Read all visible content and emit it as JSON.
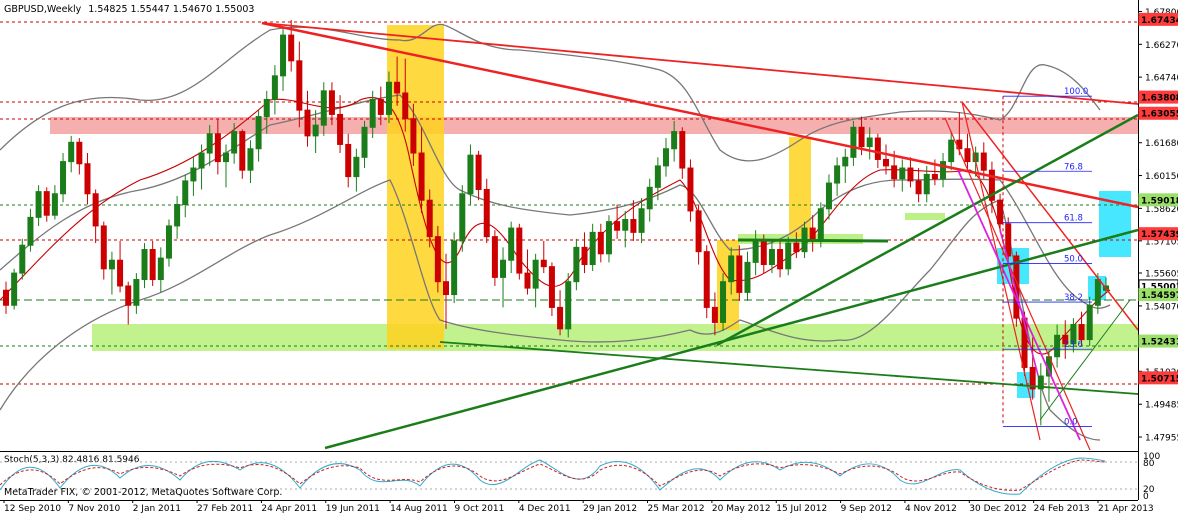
{
  "header": {
    "symbol": "GBPUSD,Weekly",
    "ohlc": "1.54825 1.55447 1.54670 1.55003"
  },
  "footer": {
    "copyright": "MetaTrader FIX, © 2001-2012, MetaQuotes Software Corp."
  },
  "stoch": {
    "label": "Stoch(5,3,3) 82.4816 81.5946",
    "ticks": [
      "100",
      "80",
      "20",
      "0"
    ],
    "ylim": [
      0,
      100
    ]
  },
  "colors": {
    "bull": "#1a7d1a",
    "bear": "#cc0000",
    "accent_red": "#ff0000",
    "band_pink": "#f4a6a6",
    "band_green": "#b6f07a",
    "highlight_orange": "#ffd21f",
    "highlight_cyan": "#33e6ff",
    "bollinger": "#777777",
    "fib": "#2222ff",
    "stoch_main": "#33aacc",
    "stoch_signal": "#cc2222"
  },
  "chart_data": {
    "type": "candlestick",
    "title": "GBPUSD,Weekly",
    "ylim": [
      1.4735,
      1.6815
    ],
    "y_ticks": [
      "1.67800",
      "1.66270",
      "1.64740",
      "1.63190",
      "1.61680",
      "1.60150",
      "1.58620",
      "1.57105",
      "1.55605",
      "1.54070",
      "1.52545",
      "1.51020",
      "1.49485",
      "1.47955"
    ],
    "x_ticks": [
      "12 Sep 2010",
      "7 Nov 2010",
      "2 Jan 2011",
      "27 Feb 2011",
      "24 Apr 2011",
      "19 Jun 2011",
      "14 Aug 2011",
      "9 Oct 2011",
      "4 Dec 2011",
      "29 Jan 2012",
      "25 Mar 2012",
      "20 May 2012",
      "15 Jul 2012",
      "9 Sep 2012",
      "4 Nov 2012",
      "30 Dec 2012",
      "24 Feb 2013",
      "21 Apr 2013"
    ],
    "price_labels": [
      {
        "text": "1.67434",
        "value": 1.67434
      },
      {
        "text": "1.63808",
        "value": 1.63808
      },
      {
        "text": "1.63055",
        "value": 1.63055
      },
      {
        "text": "1.59018",
        "value": 1.59018
      },
      {
        "text": "1.57439",
        "value": 1.57439
      },
      {
        "text": "1.55003",
        "value": 1.55003
      },
      {
        "text": "1.54597",
        "value": 1.54597
      },
      {
        "text": "1.52431",
        "value": 1.52431
      },
      {
        "text": "1.50715",
        "value": 1.50715
      }
    ],
    "fib_levels": [
      {
        "label": "100.0",
        "value": 1.6385
      },
      {
        "label": "76.8",
        "value": 1.6035
      },
      {
        "label": "61.8",
        "value": 1.5795
      },
      {
        "label": "50.0",
        "value": 1.5605
      },
      {
        "label": "38.2",
        "value": 1.5425
      },
      {
        "label": "23.6",
        "value": 1.5205
      },
      {
        "label": "0.0",
        "value": 1.4845
      }
    ],
    "candles": [
      [
        1.548,
        1.552,
        1.537,
        1.541
      ],
      [
        1.541,
        1.558,
        1.539,
        1.556
      ],
      [
        1.556,
        1.572,
        1.553,
        1.569
      ],
      [
        1.569,
        1.586,
        1.566,
        1.582
      ],
      [
        1.582,
        1.597,
        1.578,
        1.594
      ],
      [
        1.594,
        1.596,
        1.58,
        1.583
      ],
      [
        1.583,
        1.597,
        1.581,
        1.593
      ],
      [
        1.593,
        1.612,
        1.589,
        1.608
      ],
      [
        1.608,
        1.62,
        1.603,
        1.617
      ],
      [
        1.617,
        1.619,
        1.602,
        1.607
      ],
      [
        1.607,
        1.612,
        1.588,
        1.593
      ],
      [
        1.593,
        1.595,
        1.57,
        1.578
      ],
      [
        1.578,
        1.58,
        1.553,
        1.558
      ],
      [
        1.558,
        1.566,
        1.546,
        1.562
      ],
      [
        1.562,
        1.571,
        1.547,
        1.55
      ],
      [
        1.55,
        1.552,
        1.532,
        1.541
      ],
      [
        1.541,
        1.556,
        1.537,
        1.553
      ],
      [
        1.553,
        1.57,
        1.549,
        1.567
      ],
      [
        1.567,
        1.571,
        1.55,
        1.553
      ],
      [
        1.553,
        1.568,
        1.547,
        1.563
      ],
      [
        1.563,
        1.581,
        1.559,
        1.578
      ],
      [
        1.578,
        1.592,
        1.572,
        1.588
      ],
      [
        1.588,
        1.602,
        1.582,
        1.599
      ],
      [
        1.599,
        1.61,
        1.592,
        1.605
      ],
      [
        1.605,
        1.616,
        1.595,
        1.612
      ],
      [
        1.612,
        1.625,
        1.606,
        1.621
      ],
      [
        1.621,
        1.628,
        1.602,
        1.608
      ],
      [
        1.608,
        1.616,
        1.596,
        1.612
      ],
      [
        1.612,
        1.626,
        1.607,
        1.622
      ],
      [
        1.622,
        1.623,
        1.6,
        1.604
      ],
      [
        1.604,
        1.618,
        1.598,
        1.614
      ],
      [
        1.614,
        1.632,
        1.608,
        1.629
      ],
      [
        1.629,
        1.641,
        1.621,
        1.637
      ],
      [
        1.637,
        1.653,
        1.63,
        1.648
      ],
      [
        1.648,
        1.671,
        1.641,
        1.667
      ],
      [
        1.667,
        1.674,
        1.65,
        1.655
      ],
      [
        1.655,
        1.664,
        1.624,
        1.632
      ],
      [
        1.632,
        1.641,
        1.615,
        1.62
      ],
      [
        1.62,
        1.632,
        1.612,
        1.625
      ],
      [
        1.625,
        1.645,
        1.62,
        1.641
      ],
      [
        1.641,
        1.645,
        1.625,
        1.63
      ],
      [
        1.63,
        1.639,
        1.612,
        1.616
      ],
      [
        1.616,
        1.621,
        1.596,
        1.601
      ],
      [
        1.601,
        1.614,
        1.594,
        1.61
      ],
      [
        1.61,
        1.627,
        1.605,
        1.624
      ],
      [
        1.624,
        1.641,
        1.619,
        1.637
      ],
      [
        1.637,
        1.643,
        1.625,
        1.63
      ],
      [
        1.63,
        1.65,
        1.626,
        1.645
      ],
      [
        1.645,
        1.657,
        1.634,
        1.64
      ],
      [
        1.64,
        1.656,
        1.622,
        1.628
      ],
      [
        1.628,
        1.635,
        1.606,
        1.612
      ],
      [
        1.612,
        1.624,
        1.584,
        1.59
      ],
      [
        1.59,
        1.595,
        1.568,
        1.573
      ],
      [
        1.573,
        1.578,
        1.547,
        1.552
      ],
      [
        1.552,
        1.565,
        1.53,
        1.546
      ],
      [
        1.546,
        1.575,
        1.542,
        1.571
      ],
      [
        1.571,
        1.597,
        1.566,
        1.593
      ],
      [
        1.593,
        1.616,
        1.588,
        1.611
      ],
      [
        1.611,
        1.613,
        1.59,
        1.595
      ],
      [
        1.595,
        1.6,
        1.57,
        1.573
      ],
      [
        1.573,
        1.576,
        1.55,
        1.554
      ],
      [
        1.554,
        1.568,
        1.54,
        1.562
      ],
      [
        1.562,
        1.58,
        1.556,
        1.577
      ],
      [
        1.577,
        1.579,
        1.553,
        1.556
      ],
      [
        1.556,
        1.567,
        1.546,
        1.549
      ],
      [
        1.549,
        1.565,
        1.54,
        1.562
      ],
      [
        1.562,
        1.571,
        1.556,
        1.559
      ],
      [
        1.559,
        1.561,
        1.536,
        1.54
      ],
      [
        1.54,
        1.548,
        1.527,
        1.53
      ],
      [
        1.53,
        1.556,
        1.526,
        1.552
      ],
      [
        1.552,
        1.572,
        1.548,
        1.568
      ],
      [
        1.568,
        1.575,
        1.556,
        1.56
      ],
      [
        1.56,
        1.579,
        1.557,
        1.575
      ],
      [
        1.575,
        1.579,
        1.561,
        1.565
      ],
      [
        1.565,
        1.583,
        1.561,
        1.58
      ],
      [
        1.58,
        1.588,
        1.572,
        1.576
      ],
      [
        1.576,
        1.585,
        1.568,
        1.581
      ],
      [
        1.581,
        1.59,
        1.571,
        1.575
      ],
      [
        1.575,
        1.591,
        1.57,
        1.586
      ],
      [
        1.586,
        1.6,
        1.58,
        1.596
      ],
      [
        1.596,
        1.61,
        1.59,
        1.606
      ],
      [
        1.606,
        1.619,
        1.601,
        1.614
      ],
      [
        1.614,
        1.627,
        1.608,
        1.622
      ],
      [
        1.622,
        1.624,
        1.6,
        1.605
      ],
      [
        1.605,
        1.609,
        1.58,
        1.585
      ],
      [
        1.585,
        1.588,
        1.56,
        1.566
      ],
      [
        1.566,
        1.569,
        1.535,
        1.54
      ],
      [
        1.54,
        1.547,
        1.527,
        1.533
      ],
      [
        1.533,
        1.556,
        1.529,
        1.552
      ],
      [
        1.552,
        1.568,
        1.546,
        1.564
      ],
      [
        1.564,
        1.569,
        1.543,
        1.547
      ],
      [
        1.547,
        1.566,
        1.543,
        1.561
      ],
      [
        1.561,
        1.576,
        1.555,
        1.571
      ],
      [
        1.571,
        1.574,
        1.556,
        1.56
      ],
      [
        1.56,
        1.571,
        1.556,
        1.567
      ],
      [
        1.567,
        1.571,
        1.554,
        1.558
      ],
      [
        1.558,
        1.573,
        1.555,
        1.57
      ],
      [
        1.57,
        1.575,
        1.563,
        1.566
      ],
      [
        1.566,
        1.58,
        1.563,
        1.577
      ],
      [
        1.577,
        1.583,
        1.566,
        1.571
      ],
      [
        1.571,
        1.589,
        1.568,
        1.586
      ],
      [
        1.586,
        1.602,
        1.581,
        1.598
      ],
      [
        1.598,
        1.61,
        1.592,
        1.606
      ],
      [
        1.606,
        1.614,
        1.598,
        1.61
      ],
      [
        1.61,
        1.627,
        1.606,
        1.624
      ],
      [
        1.624,
        1.629,
        1.611,
        1.615
      ],
      [
        1.615,
        1.624,
        1.609,
        1.619
      ],
      [
        1.619,
        1.621,
        1.605,
        1.609
      ],
      [
        1.609,
        1.616,
        1.602,
        1.606
      ],
      [
        1.606,
        1.613,
        1.596,
        1.6
      ],
      [
        1.6,
        1.609,
        1.594,
        1.605
      ],
      [
        1.605,
        1.61,
        1.596,
        1.599
      ],
      [
        1.599,
        1.605,
        1.589,
        1.593
      ],
      [
        1.593,
        1.606,
        1.589,
        1.602
      ],
      [
        1.602,
        1.609,
        1.597,
        1.6
      ],
      [
        1.6,
        1.612,
        1.596,
        1.608
      ],
      [
        1.608,
        1.622,
        1.604,
        1.618
      ],
      [
        1.618,
        1.631,
        1.611,
        1.614
      ],
      [
        1.614,
        1.621,
        1.604,
        1.608
      ],
      [
        1.608,
        1.615,
        1.601,
        1.612
      ],
      [
        1.612,
        1.617,
        1.6,
        1.604
      ],
      [
        1.604,
        1.608,
        1.584,
        1.59
      ],
      [
        1.59,
        1.593,
        1.575,
        1.579
      ],
      [
        1.579,
        1.582,
        1.56,
        1.564
      ],
      [
        1.564,
        1.566,
        1.531,
        1.535
      ],
      [
        1.535,
        1.538,
        1.508,
        1.512
      ],
      [
        1.512,
        1.526,
        1.497,
        1.502
      ],
      [
        1.502,
        1.514,
        1.485,
        1.508
      ],
      [
        1.508,
        1.52,
        1.496,
        1.517
      ],
      [
        1.517,
        1.532,
        1.512,
        1.527
      ],
      [
        1.527,
        1.534,
        1.516,
        1.523
      ],
      [
        1.523,
        1.535,
        1.519,
        1.532
      ],
      [
        1.532,
        1.538,
        1.522,
        1.525
      ],
      [
        1.525,
        1.545,
        1.522,
        1.541
      ],
      [
        1.541,
        1.556,
        1.537,
        1.553
      ],
      [
        1.548,
        1.554,
        1.547,
        1.55
      ]
    ]
  }
}
